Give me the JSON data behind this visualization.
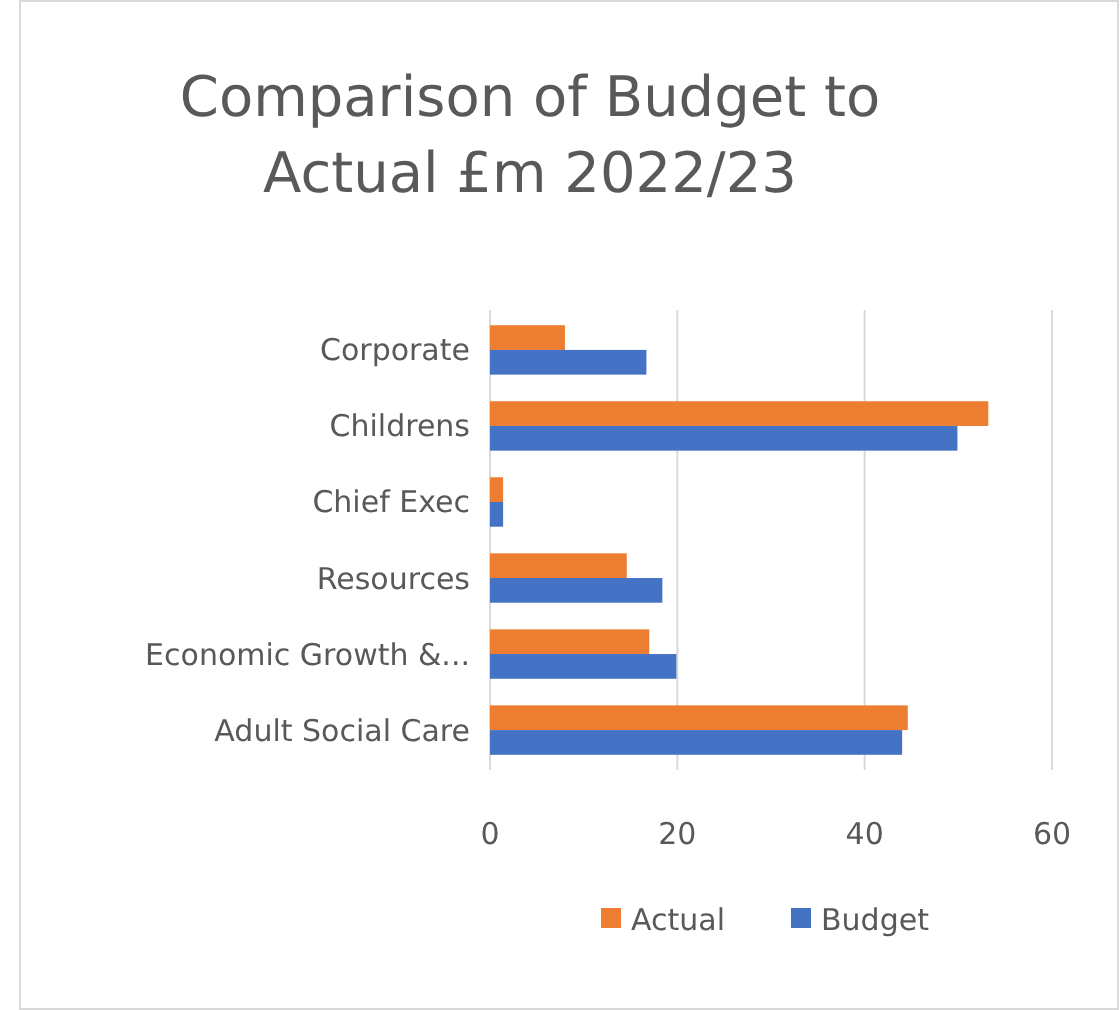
{
  "chart_data": {
    "type": "bar",
    "orientation": "horizontal",
    "title": "Comparison of Budget to Actual £m 2022/23",
    "categories": [
      "Corporate",
      "Childrens",
      "Chief Exec",
      "Resources",
      "Economic Growth &...",
      "Adult Social Care"
    ],
    "series": [
      {
        "name": "Actual",
        "color": "#ed7d31",
        "values": [
          8.0,
          53.2,
          1.4,
          14.6,
          17.0,
          44.6
        ]
      },
      {
        "name": "Budget",
        "color": "#4472c4",
        "values": [
          16.7,
          49.9,
          1.4,
          18.4,
          19.9,
          44.0
        ]
      }
    ],
    "xlim": [
      0,
      60
    ],
    "xticks": [
      0,
      20,
      40,
      60
    ],
    "grid": "x",
    "legend": "bottom"
  }
}
